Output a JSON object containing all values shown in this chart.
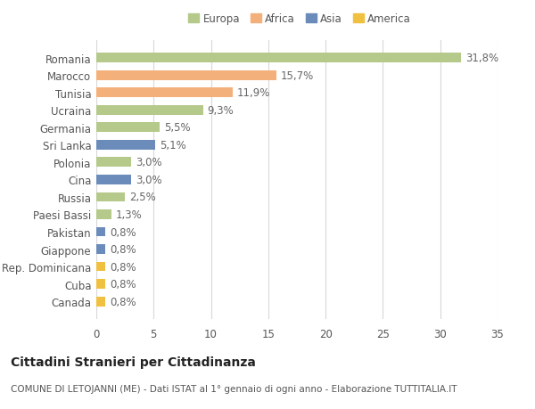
{
  "countries": [
    "Romania",
    "Marocco",
    "Tunisia",
    "Ucraina",
    "Germania",
    "Sri Lanka",
    "Polonia",
    "Cina",
    "Russia",
    "Paesi Bassi",
    "Pakistan",
    "Giappone",
    "Rep. Dominicana",
    "Cuba",
    "Canada"
  ],
  "values": [
    31.8,
    15.7,
    11.9,
    9.3,
    5.5,
    5.1,
    3.0,
    3.0,
    2.5,
    1.3,
    0.8,
    0.8,
    0.8,
    0.8,
    0.8
  ],
  "labels": [
    "31,8%",
    "15,7%",
    "11,9%",
    "9,3%",
    "5,5%",
    "5,1%",
    "3,0%",
    "3,0%",
    "2,5%",
    "1,3%",
    "0,8%",
    "0,8%",
    "0,8%",
    "0,8%",
    "0,8%"
  ],
  "colors": [
    "#b5c98a",
    "#f4b07a",
    "#f4b07a",
    "#b5c98a",
    "#b5c98a",
    "#6b8cba",
    "#b5c98a",
    "#6b8cba",
    "#b5c98a",
    "#b5c98a",
    "#6b8cba",
    "#6b8cba",
    "#f0c040",
    "#f0c040",
    "#f0c040"
  ],
  "legend_labels": [
    "Europa",
    "Africa",
    "Asia",
    "America"
  ],
  "legend_colors": [
    "#b5c98a",
    "#f4b07a",
    "#6b8cba",
    "#f0c040"
  ],
  "title": "Cittadini Stranieri per Cittadinanza",
  "subtitle": "COMUNE DI LETOJANNI (ME) - Dati ISTAT al 1° gennaio di ogni anno - Elaborazione TUTTITALIA.IT",
  "xlim": [
    0,
    35
  ],
  "xticks": [
    0,
    5,
    10,
    15,
    20,
    25,
    30,
    35
  ],
  "background_color": "#ffffff",
  "grid_color": "#d8d8d8",
  "bar_height": 0.55,
  "label_fontsize": 8.5,
  "tick_fontsize": 8.5,
  "title_fontsize": 10,
  "subtitle_fontsize": 7.5
}
